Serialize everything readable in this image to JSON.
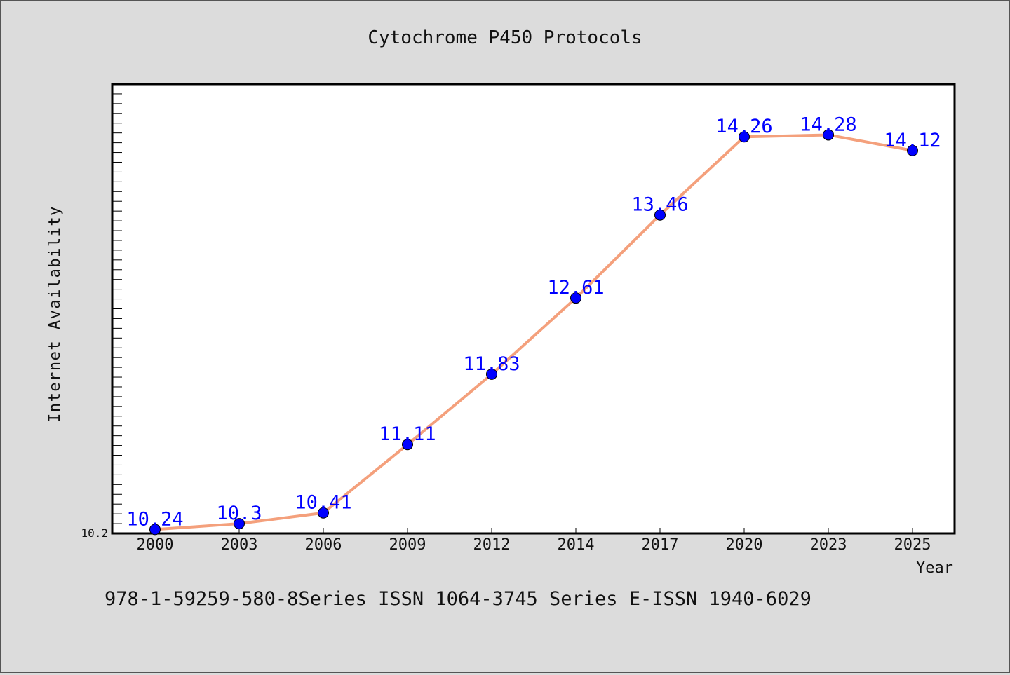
{
  "chart_data": {
    "type": "line",
    "title": "Cytochrome P450 Protocols",
    "xlabel": "Year",
    "ylabel": "Internet Availability",
    "footer": "978-1-59259-580-8Series ISSN 1064-3745 Series E-ISSN 1940-6029",
    "categories": [
      "2000",
      "2003",
      "2006",
      "2009",
      "2012",
      "2014",
      "2017",
      "2020",
      "2023",
      "2025"
    ],
    "series": [
      {
        "values": [
          10.24,
          10.3,
          10.41,
          11.11,
          11.83,
          12.61,
          13.46,
          14.26,
          14.28,
          14.12
        ]
      }
    ],
    "y_tick_labels": [
      "10.2"
    ],
    "ylim": [
      10.2,
      14.8
    ],
    "grid": false,
    "colors": {
      "line": "#f4a07c",
      "marker": "#0000ff",
      "label": "#0000ff",
      "plot_bg": "#ffffff",
      "page_bg": "#dcdcdc"
    }
  }
}
